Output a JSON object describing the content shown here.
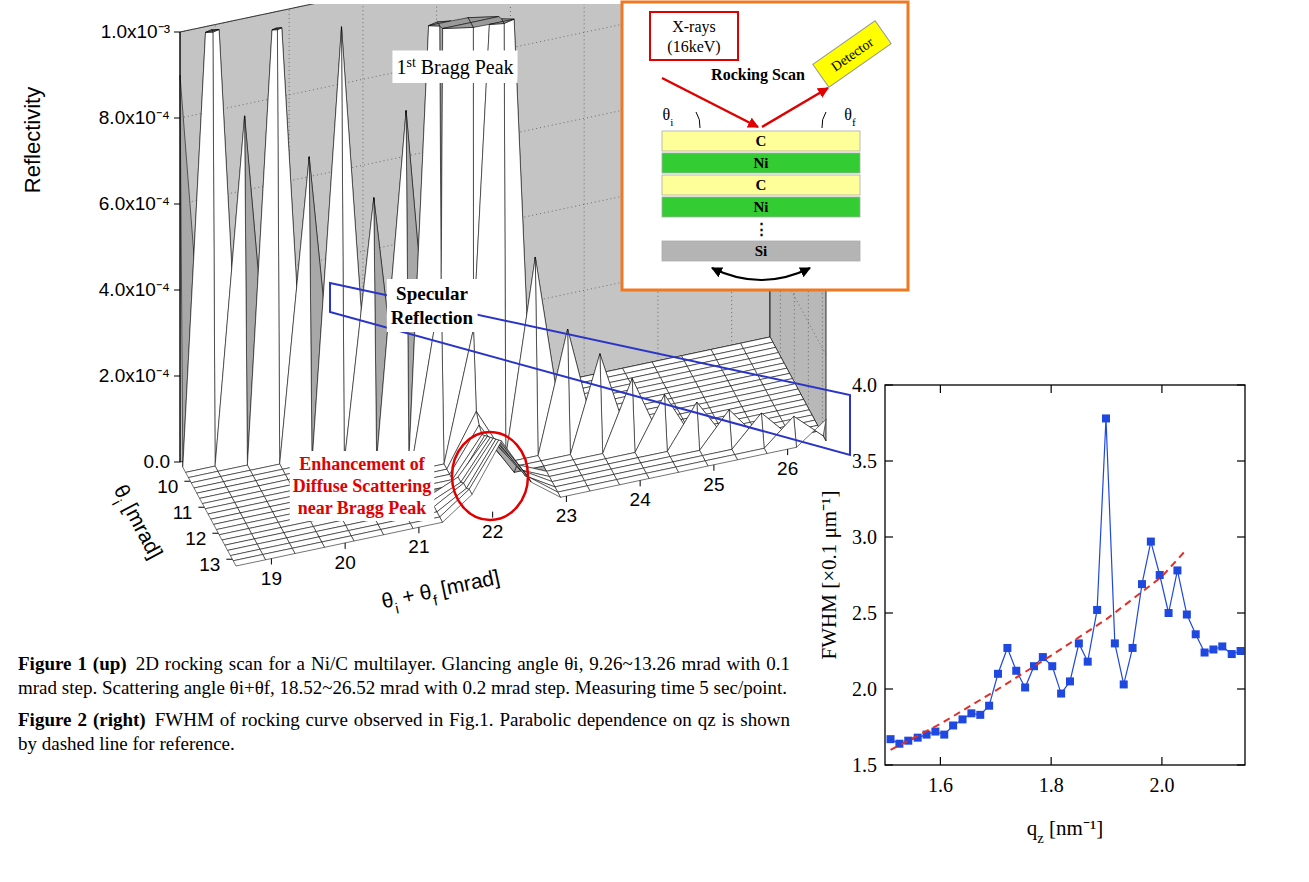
{
  "chart_data": [
    {
      "type": "surface",
      "z_label": "Reflectivity",
      "x_label": [
        {
          "text": "θ"
        },
        {
          "text": "i",
          "sub": true
        },
        {
          "text": " + θ"
        },
        {
          "text": "f",
          "sub": true
        },
        {
          "text": " [mrad]"
        }
      ],
      "y_label": [
        {
          "text": "θ"
        },
        {
          "text": "i",
          "sub": true
        },
        {
          "text": " [mrad]"
        }
      ],
      "x": [
        18.52,
        18.92,
        19.32,
        19.72,
        20.12,
        20.52,
        20.92,
        21.32,
        21.72,
        22.12,
        22.52,
        22.92,
        23.32,
        23.72,
        24.12,
        24.52,
        24.92,
        25.32,
        25.72,
        26.12,
        26.52
      ],
      "y": [
        9.26,
        9.46,
        9.66,
        9.86,
        10.06,
        10.26,
        10.46,
        10.66,
        10.86,
        11.06,
        11.26,
        11.46,
        11.66,
        11.86,
        12.06,
        12.26,
        12.46,
        12.66,
        12.86,
        13.06,
        13.26
      ],
      "z": [
        [
          0.0009,
          0,
          0,
          0,
          0,
          0,
          0,
          0,
          0,
          4e-05,
          0,
          0,
          0,
          0,
          0,
          0,
          0,
          0,
          0,
          0,
          0
        ],
        [
          0,
          0.0013,
          0,
          0,
          0,
          0,
          0,
          0,
          0,
          4e-05,
          0,
          0,
          0,
          0,
          0,
          0,
          0,
          0,
          0,
          0,
          0
        ],
        [
          0,
          0,
          0.0008,
          0,
          0,
          0,
          0,
          0,
          0,
          4e-05,
          0,
          0,
          0,
          0,
          0,
          0,
          0,
          0,
          0,
          0,
          0
        ],
        [
          0,
          0,
          0,
          0.0012,
          0,
          0,
          0,
          0,
          0,
          4e-05,
          0,
          0,
          0,
          0,
          0,
          0,
          0,
          0,
          0,
          0,
          0
        ],
        [
          0,
          0,
          0,
          0,
          0.0007,
          0,
          0,
          0,
          0,
          5e-05,
          0,
          0,
          0,
          0,
          0,
          0,
          0,
          0,
          0,
          0,
          0
        ],
        [
          0,
          0,
          0,
          0,
          0,
          0.001,
          0,
          0,
          0,
          5e-05,
          0,
          0,
          0,
          0,
          0,
          0,
          0,
          0,
          0,
          0,
          0
        ],
        [
          0,
          0,
          0,
          0,
          0,
          0,
          0.0006,
          0,
          0,
          6e-05,
          0,
          0,
          0,
          0,
          0,
          0,
          0,
          0,
          0,
          0,
          0
        ],
        [
          0,
          0,
          0,
          0,
          0,
          0,
          0,
          0.0008,
          0,
          8e-05,
          0,
          0,
          0,
          0,
          0,
          0,
          0,
          0,
          0,
          0,
          0
        ],
        [
          0,
          0,
          0,
          0,
          0,
          0,
          0,
          0,
          0.0015,
          0.0003,
          0,
          0,
          0,
          0,
          0,
          0,
          0,
          0,
          0,
          0,
          0
        ],
        [
          0,
          0,
          0,
          0,
          0,
          0,
          0,
          0,
          0.0004,
          0.012,
          0.0004,
          0,
          0,
          0,
          0,
          0,
          0,
          0,
          0,
          0,
          0
        ],
        [
          0,
          0,
          0,
          0,
          0,
          0,
          0,
          0,
          0,
          0.0003,
          0.0016,
          0,
          0,
          0,
          0,
          0,
          0,
          0,
          0,
          0,
          0
        ],
        [
          0,
          0,
          0,
          0,
          0,
          0,
          0,
          0,
          0,
          0.00012,
          0,
          0.00045,
          0,
          0,
          0,
          0,
          0,
          0,
          0,
          0,
          0
        ],
        [
          0,
          0,
          0,
          0,
          0,
          0,
          0,
          0,
          0,
          0.0001,
          0,
          0,
          0.00028,
          0,
          0,
          0,
          0,
          0,
          0,
          0,
          0
        ],
        [
          0,
          0,
          0,
          0,
          0,
          0,
          0,
          0,
          0,
          9e-05,
          0,
          0,
          0,
          0.00022,
          0,
          0,
          0,
          0,
          0,
          0,
          0
        ],
        [
          0,
          0,
          0,
          0,
          0,
          0,
          0,
          0,
          0,
          0.0001,
          0,
          0,
          0,
          0,
          0.00016,
          0,
          0,
          0,
          0,
          0,
          0
        ],
        [
          0,
          0,
          0,
          0,
          0,
          0,
          0,
          0,
          3e-05,
          0.00011,
          3e-05,
          0,
          0,
          0,
          0,
          0.00012,
          0,
          0,
          0,
          0,
          0
        ],
        [
          0,
          0,
          0,
          0,
          0,
          0,
          0,
          0,
          3e-05,
          0.00012,
          3e-05,
          0,
          0,
          0,
          0,
          0,
          0.0001,
          0,
          0,
          0,
          0
        ],
        [
          0,
          0,
          0,
          0,
          0,
          0,
          0,
          0,
          4e-05,
          0.00013,
          4e-05,
          0,
          0,
          0,
          0,
          0,
          0,
          8e-05,
          0,
          0,
          0
        ],
        [
          0,
          0,
          0,
          0,
          0,
          0,
          0,
          0,
          4e-05,
          0.00014,
          4e-05,
          0,
          0,
          0,
          0,
          0,
          0,
          0,
          7e-05,
          0,
          0
        ],
        [
          0,
          0,
          0,
          0,
          0,
          0,
          0,
          0,
          5e-05,
          0.00015,
          5e-05,
          0,
          0,
          0,
          0,
          0,
          0,
          0,
          0,
          6e-05,
          0
        ],
        [
          0,
          0,
          0,
          0,
          0,
          0,
          0,
          0,
          5e-05,
          0.00016,
          5e-05,
          0,
          0,
          0,
          0,
          0,
          0,
          0,
          0,
          0,
          5e-05
        ]
      ],
      "xlim": [
        18.52,
        26.52
      ],
      "xticks": [
        19,
        20,
        21,
        22,
        23,
        24,
        25,
        26
      ],
      "ylim": [
        9.26,
        13.26
      ],
      "yticks": [
        10,
        11,
        12,
        13
      ],
      "zlim": [
        0,
        0.001
      ],
      "zticks": [
        {
          "value": 0,
          "label": "0.0"
        },
        {
          "value": 0.0002,
          "label": "2.0x10⁻⁴"
        },
        {
          "value": 0.0004,
          "label": "4.0x10⁻⁴"
        },
        {
          "value": 0.0006,
          "label": "6.0x10⁻⁴"
        },
        {
          "value": 0.0008,
          "label": "8.0x10⁻⁴"
        },
        {
          "value": 0.001,
          "label": "1.0x10⁻³"
        }
      ],
      "grid": true,
      "annotations": [
        {
          "text": [
            {
              "text": "1"
            },
            {
              "text": "st",
              "sup": true
            },
            {
              "text": " Bragg Peak"
            }
          ],
          "color": "#000000"
        },
        {
          "text": "Specular Reflection",
          "color": "#000000"
        },
        {
          "text": "Enhancement of Diffuse Scattering near Bragg Peak",
          "color": "#e00000"
        }
      ]
    },
    {
      "type": "line",
      "x_label": [
        {
          "text": "q"
        },
        {
          "text": "z",
          "sub": true
        },
        {
          "text": " [nm⁻¹]"
        }
      ],
      "y_label": "FWHM [×0.1 μm⁻¹]",
      "xlim": [
        1.5,
        2.15
      ],
      "xticks": [
        1.6,
        1.8,
        {
          "value": 2,
          "label": "2.0"
        }
      ],
      "ylim": [
        1.5,
        4
      ],
      "yticks": [
        1.5,
        {
          "value": 2,
          "label": "2.0"
        },
        2.5,
        {
          "value": 3,
          "label": "3.0"
        },
        3.5,
        {
          "value": 4,
          "label": "4.0"
        }
      ],
      "grid": false,
      "series": [
        {
          "color": "#1f48e0",
          "marker": "square",
          "line_style": "solid",
          "x": [
            1.51,
            1.526,
            1.542,
            1.559,
            1.575,
            1.591,
            1.607,
            1.623,
            1.64,
            1.656,
            1.672,
            1.688,
            1.704,
            1.721,
            1.737,
            1.753,
            1.769,
            1.785,
            1.802,
            1.818,
            1.834,
            1.85,
            1.866,
            1.883,
            1.899,
            1.915,
            1.931,
            1.947,
            1.964,
            1.98,
            1.996,
            2.012,
            2.028,
            2.045,
            2.061,
            2.077,
            2.093,
            2.109,
            2.126,
            2.142
          ],
          "values": [
            1.67,
            1.64,
            1.66,
            1.68,
            1.7,
            1.72,
            1.7,
            1.76,
            1.8,
            1.84,
            1.83,
            1.89,
            2.1,
            2.27,
            2.12,
            2.01,
            2.15,
            2.21,
            2.15,
            1.97,
            2.05,
            2.3,
            2.18,
            2.52,
            3.78,
            2.3,
            2.03,
            2.27,
            2.69,
            2.97,
            2.75,
            2.5,
            2.78,
            2.49,
            2.36,
            2.24,
            2.26,
            2.28,
            2.23,
            2.25
          ]
        },
        {
          "color": "#e0302a",
          "marker": "none",
          "line_style": "dashed",
          "x": [
            1.51,
            1.6,
            1.7,
            1.8,
            1.9,
            2.0,
            2.04
          ],
          "values": [
            1.6,
            1.77,
            1.99,
            2.22,
            2.46,
            2.74,
            2.9
          ]
        }
      ]
    }
  ],
  "diagram": {
    "source": [
      "X-rays",
      "(16keV)"
    ],
    "scan_label": "Rocking Scan",
    "detector": "Detector",
    "angle_in": [
      {
        "text": "θ"
      },
      {
        "text": "i",
        "sub": true
      }
    ],
    "angle_out": [
      {
        "text": "θ"
      },
      {
        "text": "f",
        "sub": true
      }
    ],
    "layers": [
      {
        "label": "C",
        "color": "#ffff99"
      },
      {
        "label": "Ni",
        "color": "#33cc33"
      },
      {
        "label": "C",
        "color": "#ffff99"
      },
      {
        "label": "Ni",
        "color": "#33cc33"
      },
      {
        "label": "⋮"
      },
      {
        "label": "Si",
        "color": "#b4b4b4"
      }
    ]
  },
  "captions": [
    {
      "label": "Figure 1 (up)",
      "text": "2D rocking scan for a Ni/C multilayer. Glancing angle θi, 9.26~13.26 mrad with 0.1 mrad step. Scattering angle θi+θf, 18.52~26.52 mrad with 0.2 mrad step. Measuring time 5 sec/point."
    },
    {
      "label": "Figure 2 (right)",
      "text": "FWHM of rocking curve observed in Fig.1. Parabolic dependence on qz is shown by dashed line for reference."
    }
  ]
}
